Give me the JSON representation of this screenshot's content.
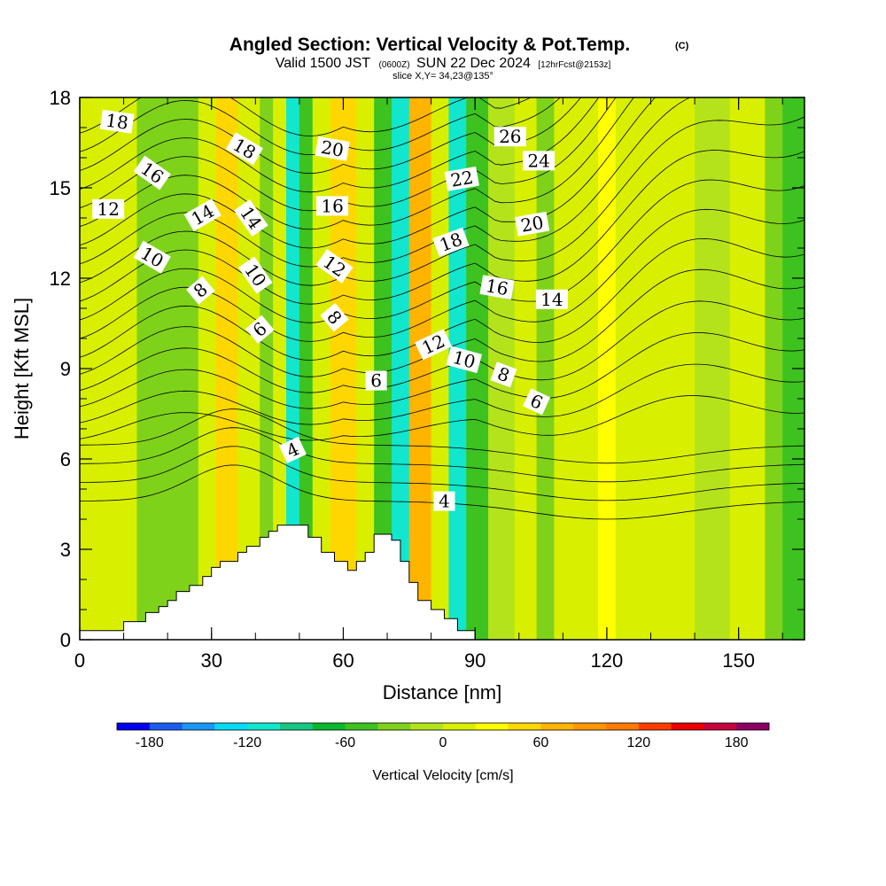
{
  "header": {
    "title": "Angled Section: Vertical Velocity & Pot.Temp.",
    "title_mark": "(C)",
    "valid_prefix": "Valid 1500 JST",
    "valid_utc": "(0600Z)",
    "valid_date": "SUN 22 Dec 2024",
    "forecast": "[12hrFcst@2153z]",
    "slice": "slice X,Y= 34,23@135°"
  },
  "chart_data": {
    "type": "heatmap",
    "title": "Angled Section: Vertical Velocity & Pot.Temp.",
    "xlabel": "Distance [nm]",
    "ylabel": "Height [Kft MSL]",
    "xlim": [
      0,
      165
    ],
    "ylim": [
      0,
      18
    ],
    "xticks": [
      0,
      30,
      60,
      90,
      120,
      150
    ],
    "yticks": [
      0,
      3,
      6,
      9,
      12,
      15,
      18
    ],
    "fill_field": "Vertical Velocity [cm/s]",
    "contour_field": "Potential Temperature [C]",
    "colorbar": {
      "label": "Vertical Velocity [cm/s]",
      "ticks": [
        -180,
        -120,
        -60,
        0,
        60,
        120,
        180
      ],
      "levels": [
        -200,
        -180,
        -160,
        -140,
        -120,
        -100,
        -80,
        -60,
        -40,
        -20,
        0,
        20,
        40,
        60,
        80,
        100,
        120,
        140,
        160,
        180,
        200
      ],
      "colors": [
        "#0000f0",
        "#1b5cf0",
        "#1a96f4",
        "#06dbf5",
        "#12e6cc",
        "#13c983",
        "#0ab82e",
        "#3dc21f",
        "#7fd21a",
        "#b4e31c",
        "#d8f000",
        "#ffff00",
        "#ffd700",
        "#ffb400",
        "#ff9600",
        "#ff7a00",
        "#ff3c00",
        "#ea0000",
        "#c8003c",
        "#8c0064"
      ]
    },
    "velocity_bands": [
      {
        "x": [
          0,
          5
        ],
        "value": 10
      },
      {
        "x": [
          5,
          13
        ],
        "value": 10
      },
      {
        "x": [
          13,
          27
        ],
        "value": -30
      },
      {
        "x": [
          27,
          31
        ],
        "value": 10
      },
      {
        "x": [
          31,
          36
        ],
        "value": 50
      },
      {
        "x": [
          36,
          41
        ],
        "value": 10
      },
      {
        "x": [
          41,
          44
        ],
        "value": -30
      },
      {
        "x": [
          44,
          47
        ],
        "value": 10
      },
      {
        "x": [
          47,
          50
        ],
        "value": -110
      },
      {
        "x": [
          50,
          53
        ],
        "value": -50
      },
      {
        "x": [
          53,
          57
        ],
        "value": 10
      },
      {
        "x": [
          57,
          63
        ],
        "value": 50
      },
      {
        "x": [
          63,
          67
        ],
        "value": 10
      },
      {
        "x": [
          67,
          71
        ],
        "value": -50
      },
      {
        "x": [
          71,
          75
        ],
        "value": -110
      },
      {
        "x": [
          75,
          80
        ],
        "value": 70
      },
      {
        "x": [
          80,
          84
        ],
        "value": 10
      },
      {
        "x": [
          84,
          88
        ],
        "value": -110
      },
      {
        "x": [
          88,
          93
        ],
        "value": -50
      },
      {
        "x": [
          93,
          99
        ],
        "value": -10
      },
      {
        "x": [
          99,
          104
        ],
        "value": 10
      },
      {
        "x": [
          104,
          108
        ],
        "value": -30
      },
      {
        "x": [
          108,
          118
        ],
        "value": 10
      },
      {
        "x": [
          118,
          122
        ],
        "value": 30
      },
      {
        "x": [
          122,
          128
        ],
        "value": 10
      },
      {
        "x": [
          128,
          140
        ],
        "value": 10
      },
      {
        "x": [
          140,
          148
        ],
        "value": -10
      },
      {
        "x": [
          148,
          156
        ],
        "value": 10
      },
      {
        "x": [
          156,
          160
        ],
        "value": -30
      },
      {
        "x": [
          160,
          165
        ],
        "value": -50
      }
    ],
    "terrain": {
      "x": [
        0,
        10,
        15,
        18,
        20,
        22,
        25,
        28,
        30,
        32,
        36,
        38,
        41,
        43,
        45,
        47,
        50,
        52,
        55,
        58,
        61,
        63,
        65,
        67,
        69,
        71,
        73,
        75,
        77,
        80,
        83,
        86,
        89,
        90
      ],
      "y": [
        0.3,
        0.6,
        0.9,
        1.1,
        1.3,
        1.6,
        1.8,
        2.1,
        2.4,
        2.6,
        2.9,
        3.1,
        3.4,
        3.6,
        3.8,
        3.8,
        3.8,
        3.4,
        2.9,
        2.6,
        2.3,
        2.6,
        2.9,
        3.5,
        3.5,
        3.3,
        2.6,
        1.9,
        1.3,
        1.0,
        0.7,
        0.3,
        0.3,
        0.1
      ]
    },
    "contour_labels": [
      {
        "text": "18",
        "x": 8.5,
        "y": 17.2,
        "rotation": 8
      },
      {
        "text": "16",
        "x": 16.5,
        "y": 15.5,
        "rotation": 35
      },
      {
        "text": "12",
        "x": 6.5,
        "y": 14.3,
        "rotation": 0
      },
      {
        "text": "10",
        "x": 16.5,
        "y": 12.7,
        "rotation": 30
      },
      {
        "text": "14",
        "x": 28,
        "y": 14.1,
        "rotation": -30
      },
      {
        "text": "8",
        "x": 27.5,
        "y": 11.6,
        "rotation": -40
      },
      {
        "text": "18",
        "x": 37.5,
        "y": 16.3,
        "rotation": 30
      },
      {
        "text": "14",
        "x": 39,
        "y": 14.0,
        "rotation": 55
      },
      {
        "text": "10",
        "x": 40,
        "y": 12.1,
        "rotation": 55
      },
      {
        "text": "6",
        "x": 41,
        "y": 10.3,
        "rotation": -40
      },
      {
        "text": "20",
        "x": 57.5,
        "y": 16.3,
        "rotation": 10
      },
      {
        "text": "16",
        "x": 57.5,
        "y": 14.4,
        "rotation": 0
      },
      {
        "text": "12",
        "x": 58,
        "y": 12.4,
        "rotation": 35
      },
      {
        "text": "8",
        "x": 58,
        "y": 10.7,
        "rotation": 50
      },
      {
        "text": "6",
        "x": 67.5,
        "y": 8.6,
        "rotation": 0
      },
      {
        "text": "18",
        "x": 84.5,
        "y": 13.2,
        "rotation": -20
      },
      {
        "text": "22",
        "x": 87,
        "y": 15.3,
        "rotation": -10
      },
      {
        "text": "26",
        "x": 98,
        "y": 16.7,
        "rotation": 0
      },
      {
        "text": "24",
        "x": 104.5,
        "y": 15.9,
        "rotation": 0
      },
      {
        "text": "20",
        "x": 103,
        "y": 13.8,
        "rotation": -10
      },
      {
        "text": "16",
        "x": 95,
        "y": 11.7,
        "rotation": 10
      },
      {
        "text": "14",
        "x": 107.5,
        "y": 11.3,
        "rotation": 0
      },
      {
        "text": "12",
        "x": 80.5,
        "y": 9.8,
        "rotation": -25
      },
      {
        "text": "10",
        "x": 87.5,
        "y": 9.3,
        "rotation": 15
      },
      {
        "text": "8",
        "x": 96.5,
        "y": 8.8,
        "rotation": 20
      },
      {
        "text": "6",
        "x": 104,
        "y": 7.9,
        "rotation": 25
      },
      {
        "text": "4",
        "x": 48.5,
        "y": 6.3,
        "rotation": -25
      },
      {
        "text": "4",
        "x": 83,
        "y": 4.6,
        "rotation": 0
      }
    ]
  }
}
